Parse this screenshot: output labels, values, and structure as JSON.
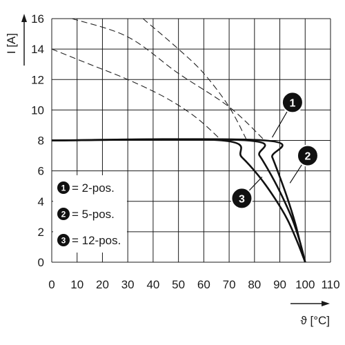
{
  "chart_data": {
    "type": "line",
    "title": "",
    "xlabel": "ϑ [°C]",
    "ylabel": "I [A]",
    "xlim": [
      0,
      110
    ],
    "ylim": [
      0,
      16
    ],
    "x_ticks": [
      0,
      10,
      20,
      30,
      40,
      50,
      60,
      70,
      80,
      90,
      100,
      110
    ],
    "y_ticks": [
      0,
      2,
      4,
      6,
      8,
      10,
      12,
      14,
      16
    ],
    "grid": true,
    "legend_position": "bottom-left",
    "series": [
      {
        "name": "2-pos.",
        "badge": "1",
        "color": "#111111",
        "x": [
          0,
          84,
          87,
          90,
          93,
          96,
          98,
          100
        ],
        "y": [
          8,
          8,
          6.9,
          5.6,
          4.2,
          2.6,
          1.3,
          0
        ],
        "derating_dashed": {
          "x": [
            8,
            30,
            50,
            70,
            84
          ],
          "y": [
            16,
            14.8,
            12.4,
            10.2,
            8
          ]
        }
      },
      {
        "name": "5-pos.",
        "badge": "2",
        "color": "#111111",
        "x": [
          0,
          77,
          82,
          87,
          91,
          95,
          98,
          100
        ],
        "y": [
          8,
          8,
          7,
          5.6,
          4.3,
          2.8,
          1.3,
          0
        ],
        "derating_dashed": {
          "x": [
            36,
            50,
            60,
            70,
            77
          ],
          "y": [
            16,
            14,
            12.4,
            10.2,
            8
          ]
        }
      },
      {
        "name": "12-pos.",
        "badge": "3",
        "color": "#111111",
        "x": [
          0,
          67,
          75,
          82,
          88,
          93,
          97,
          100
        ],
        "y": [
          8,
          8,
          6.9,
          5.6,
          4.2,
          2.8,
          1.3,
          0
        ],
        "derating_dashed": {
          "x": [
            0,
            15,
            30,
            45,
            57,
            67
          ],
          "y": [
            14,
            13,
            12,
            10.8,
            9.5,
            8
          ]
        }
      }
    ],
    "legend": [
      {
        "badge": "1",
        "text": "= 2-pos."
      },
      {
        "badge": "2",
        "text": "= 5-pos."
      },
      {
        "badge": "3",
        "text": "= 12-pos."
      }
    ],
    "callouts": [
      {
        "badge": "1",
        "x": 95,
        "y": 10.5,
        "target_x": 87,
        "target_y": 8.2
      },
      {
        "badge": "2",
        "x": 101,
        "y": 7,
        "target_x": 94,
        "target_y": 5.2
      },
      {
        "badge": "3",
        "x": 75,
        "y": 4.2,
        "target_x": 83,
        "target_y": 5.6
      }
    ]
  }
}
